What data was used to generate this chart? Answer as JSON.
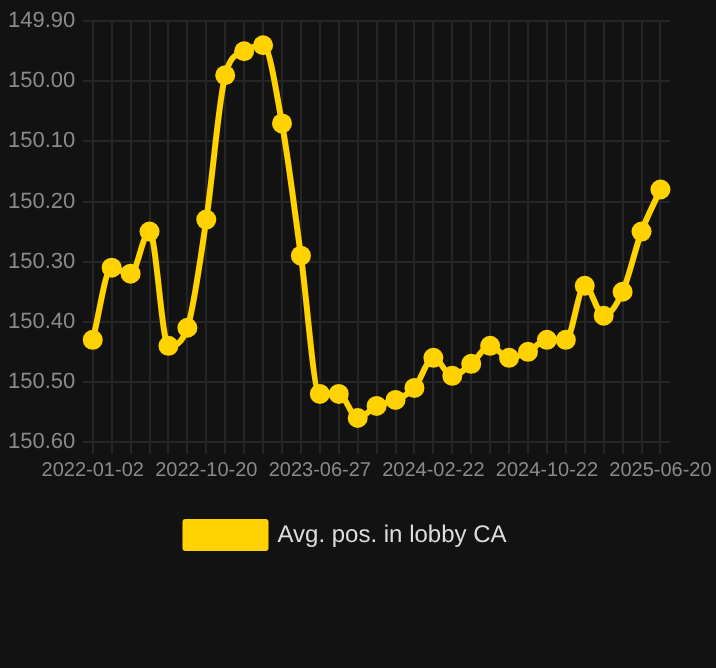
{
  "chart_data": {
    "type": "line",
    "categories": [
      "2022-01-02",
      null,
      null,
      null,
      null,
      null,
      "2022-10-20",
      null,
      null,
      null,
      null,
      null,
      "2023-06-27",
      null,
      null,
      null,
      null,
      null,
      "2024-02-22",
      null,
      null,
      null,
      null,
      null,
      "2024-10-22",
      null,
      null,
      null,
      null,
      null,
      "2025-06-20"
    ],
    "series": [
      {
        "name": "Avg. pos. in lobby CA",
        "color": "#ffd200",
        "values": [
          150.43,
          150.31,
          150.32,
          150.25,
          150.44,
          150.41,
          150.23,
          149.99,
          149.95,
          149.94,
          150.07,
          150.29,
          150.52,
          150.52,
          150.56,
          150.54,
          150.53,
          150.51,
          150.46,
          150.49,
          150.47,
          150.44,
          150.46,
          150.45,
          150.43,
          150.43,
          150.34,
          150.39,
          150.35,
          150.25,
          150.18
        ]
      }
    ],
    "ylim": [
      150.6,
      149.9
    ],
    "yticks": [
      {
        "value": 149.9,
        "label": "149.90"
      },
      {
        "value": 150,
        "label": "150.00"
      },
      {
        "value": 150.1,
        "label": "150.10"
      },
      {
        "value": 150.2,
        "label": "150.20"
      },
      {
        "value": 150.3,
        "label": "150.30"
      },
      {
        "value": 150.4,
        "label": "150.40"
      },
      {
        "value": 150.5,
        "label": "150.50"
      },
      {
        "value": 150.6,
        "label": "150.60"
      }
    ],
    "grid": true,
    "legend": "bottom",
    "marker": "circle",
    "line_style": "solid"
  }
}
